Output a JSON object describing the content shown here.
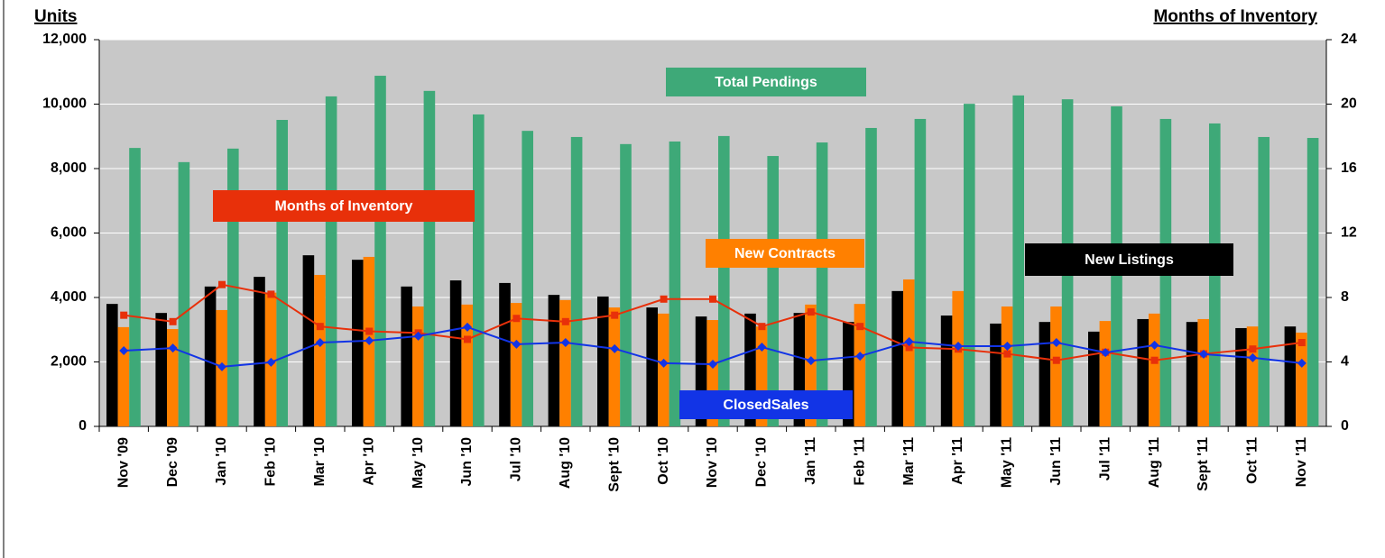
{
  "chart_data": {
    "type": "bar",
    "ylabel": "Units",
    "y2label": "Months of Inventory",
    "categories": [
      "Nov '09",
      "Dec '09",
      "Jan '10",
      "Feb '10",
      "Mar '10",
      "Apr '10",
      "May '10",
      "Jun '10",
      "Jul '10",
      "Aug '10",
      "Sept '10",
      "Oct '10",
      "Nov '10",
      "Dec '10",
      "Jan '11",
      "Feb '11",
      "Mar '11",
      "Apr '11",
      "May '11",
      "Jun '11",
      "Jul '11",
      "Aug '11",
      "Sept '11",
      "Oct '11",
      "Nov '11"
    ],
    "series": [
      {
        "name": "New Listings",
        "type": "bar",
        "color": "#000000",
        "values": [
          3800,
          3520,
          4340,
          4640,
          5310,
          5170,
          4340,
          4530,
          4450,
          4080,
          4030,
          3690,
          3410,
          3500,
          3520,
          3240,
          4200,
          3440,
          3190,
          3240,
          2940,
          3330,
          3240,
          3050,
          3100
        ]
      },
      {
        "name": "New Contracts",
        "type": "bar",
        "color": "#ff8000",
        "values": [
          3080,
          3020,
          3610,
          4150,
          4700,
          5260,
          3720,
          3780,
          3830,
          3920,
          3690,
          3500,
          3300,
          3100,
          3780,
          3800,
          4560,
          4200,
          3720,
          3720,
          3270,
          3500,
          3330,
          3100,
          2910
        ]
      },
      {
        "name": "Total Pendings",
        "type": "bar",
        "color": "#3ea978",
        "values": [
          8640,
          8200,
          8620,
          9510,
          10240,
          10880,
          10410,
          9680,
          9170,
          8980,
          8760,
          8840,
          9010,
          8390,
          8810,
          9260,
          9540,
          10010,
          10270,
          10150,
          9930,
          9540,
          9400,
          8980,
          8950
        ]
      },
      {
        "name": "Months of Inventory",
        "type": "line",
        "axis": "y2",
        "color": "#e8300a",
        "marker": "square",
        "values": [
          6.9,
          6.5,
          8.8,
          8.2,
          6.2,
          5.9,
          5.8,
          5.4,
          6.7,
          6.5,
          6.9,
          7.9,
          7.9,
          6.2,
          7.1,
          6.2,
          4.9,
          4.8,
          4.5,
          4.1,
          4.6,
          4.1,
          4.5,
          4.8,
          5.2
        ]
      },
      {
        "name": "ClosedSales",
        "type": "line",
        "color": "#1234e6",
        "marker": "diamond",
        "values": [
          2350,
          2430,
          1850,
          1990,
          2600,
          2660,
          2800,
          3080,
          2550,
          2600,
          2410,
          1960,
          1930,
          2460,
          2040,
          2180,
          2630,
          2490,
          2490,
          2600,
          2290,
          2520,
          2240,
          2130,
          1960
        ]
      }
    ],
    "ylim": [
      0,
      12000
    ],
    "yticks": [
      0,
      {
        "value": 2000,
        "label": "2,000"
      },
      {
        "value": 4000,
        "label": "4,000"
      },
      {
        "value": 6000,
        "label": "6,000"
      },
      {
        "value": 8000,
        "label": "8,000"
      },
      {
        "value": 10000,
        "label": "10,000"
      },
      {
        "value": 12000,
        "label": "12,000"
      }
    ],
    "y2lim": [
      0,
      24
    ],
    "y2ticks": [
      0,
      4,
      8,
      12,
      16,
      20,
      24
    ],
    "grid": true
  }
}
